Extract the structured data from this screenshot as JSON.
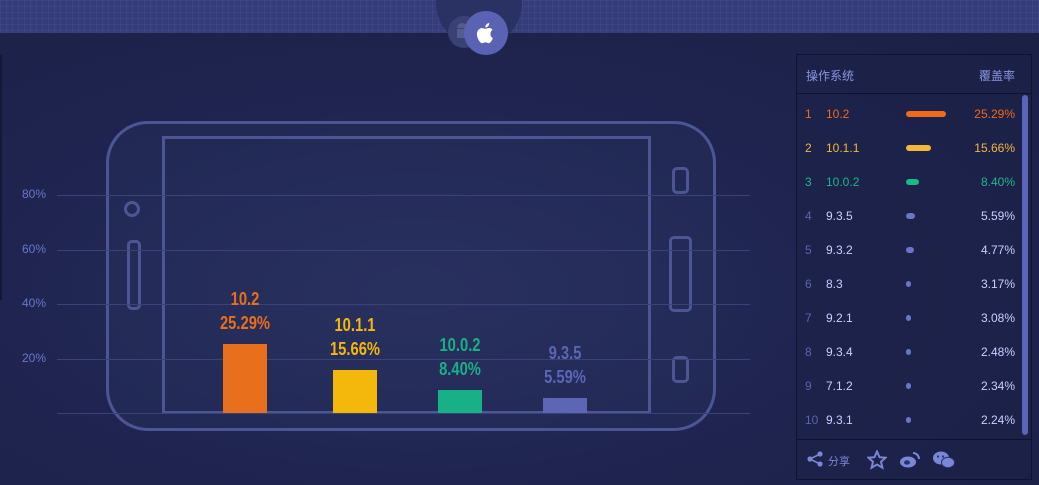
{
  "platform_tabs": [
    {
      "icon": "android-icon",
      "active": false
    },
    {
      "icon": "apple-icon",
      "active": true
    }
  ],
  "chart_data": {
    "type": "bar",
    "categories": [
      "10.2",
      "10.1.1",
      "10.0.2",
      "9.3.5"
    ],
    "values": [
      25.29,
      15.66,
      8.4,
      5.59
    ],
    "value_labels": [
      "25.29%",
      "15.66%",
      "8.40%",
      "5.59%"
    ],
    "colors": [
      "#e8701d",
      "#f4b80d",
      "#18b087",
      "#5c66b5"
    ],
    "yticks": [
      "20%",
      "40%",
      "60%",
      "80%"
    ],
    "ylim": [
      0,
      80
    ],
    "grid": true
  },
  "table": {
    "header_os": "操作系统",
    "header_coverage": "覆盖率",
    "rows": [
      {
        "rank": "1",
        "version": "10.2",
        "coverage": "25.29%",
        "value": 25.29,
        "color": "#f06a1c"
      },
      {
        "rank": "2",
        "version": "10.1.1",
        "coverage": "15.66%",
        "value": 15.66,
        "color": "#f3b73c"
      },
      {
        "rank": "3",
        "version": "10.0.2",
        "coverage": "8.40%",
        "value": 8.4,
        "color": "#1db88a"
      },
      {
        "rank": "4",
        "version": "9.3.5",
        "coverage": "5.59%",
        "value": 5.59,
        "color": "#6a74c8"
      },
      {
        "rank": "5",
        "version": "9.3.2",
        "coverage": "4.77%",
        "value": 4.77,
        "color": "#6a74c8"
      },
      {
        "rank": "6",
        "version": "8.3",
        "coverage": "3.17%",
        "value": 3.17,
        "color": "#6a74c8"
      },
      {
        "rank": "7",
        "version": "9.2.1",
        "coverage": "3.08%",
        "value": 3.08,
        "color": "#6a74c8"
      },
      {
        "rank": "8",
        "version": "9.3.4",
        "coverage": "2.48%",
        "value": 2.48,
        "color": "#6a74c8"
      },
      {
        "rank": "9",
        "version": "7.1.2",
        "coverage": "2.34%",
        "value": 2.34,
        "color": "#6a74c8"
      },
      {
        "rank": "10",
        "version": "9.3.1",
        "coverage": "2.24%",
        "value": 2.24,
        "color": "#6a74c8"
      }
    ]
  },
  "footer": {
    "share_label": "分享",
    "icons": [
      "share-icon",
      "star-icon",
      "weibo-icon",
      "wechat-icon"
    ]
  },
  "colors": {
    "background": "#1f2550",
    "topbar": "#353c7a",
    "outline": "#4c5695",
    "muted_text": "#8a95e0",
    "text_light": "#c9d0ff"
  }
}
